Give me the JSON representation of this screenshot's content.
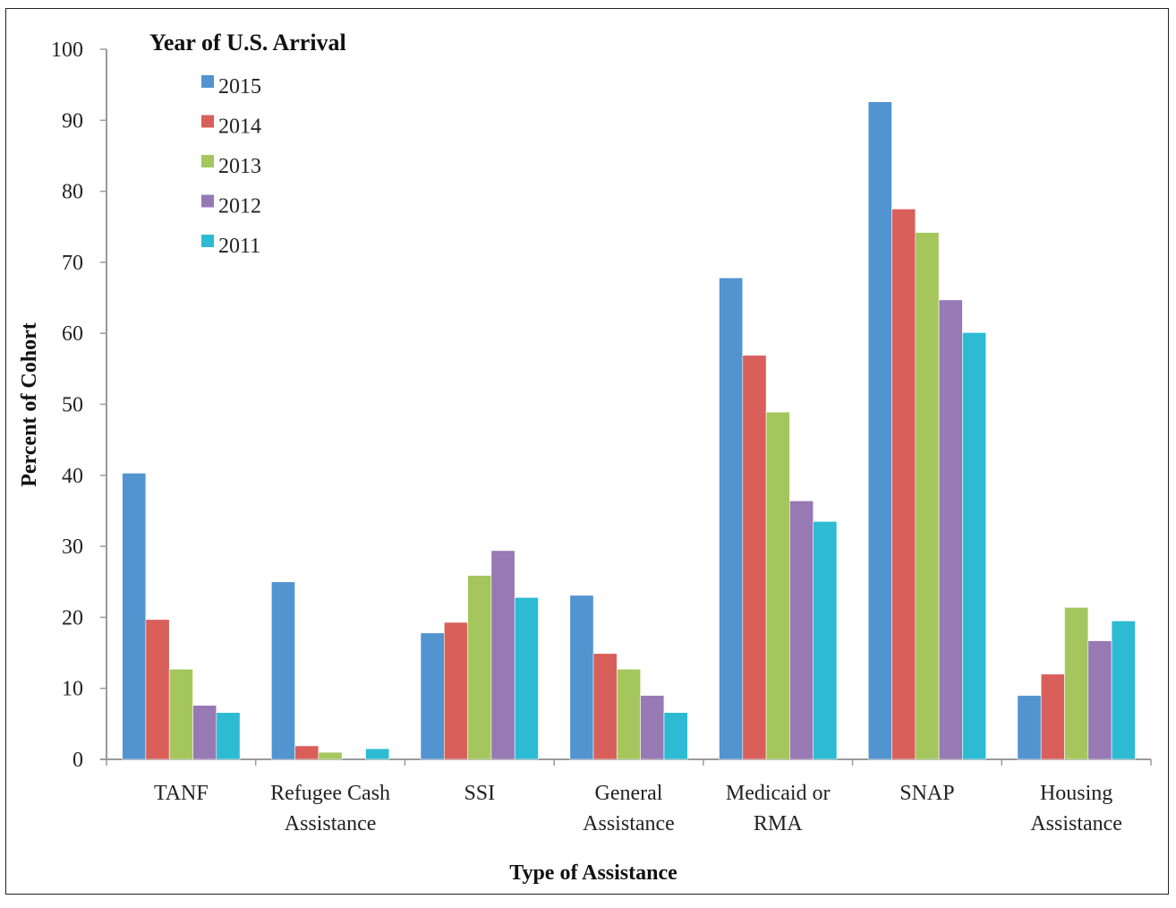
{
  "chart_data": {
    "type": "bar",
    "title": "",
    "xlabel": "Type of Assistance",
    "ylabel": "Percent of Cohort",
    "ylim": [
      0,
      100
    ],
    "yticks": [
      0,
      10,
      20,
      30,
      40,
      50,
      60,
      70,
      80,
      90,
      100
    ],
    "grid": false,
    "legend": {
      "title": "Year of U.S. Arrival",
      "placement": "top-left"
    },
    "categories": [
      [
        "TANF"
      ],
      [
        "Refugee Cash",
        "Assistance"
      ],
      [
        "SSI"
      ],
      [
        "General",
        "Assistance"
      ],
      [
        "Medicaid or",
        "RMA"
      ],
      [
        "SNAP"
      ],
      [
        "Housing",
        "Assistance"
      ]
    ],
    "series": [
      {
        "name": "2015",
        "color": "#5294D0",
        "values": [
          40.3,
          25.0,
          17.8,
          23.1,
          67.8,
          92.6,
          9.0
        ]
      },
      {
        "name": "2014",
        "color": "#D95F5B",
        "values": [
          19.7,
          1.9,
          19.3,
          14.9,
          56.9,
          77.5,
          12.0
        ]
      },
      {
        "name": "2013",
        "color": "#A4C65D",
        "values": [
          12.7,
          1.0,
          25.9,
          12.7,
          48.9,
          74.2,
          21.4
        ]
      },
      {
        "name": "2012",
        "color": "#9779B4",
        "values": [
          7.6,
          0.0,
          29.4,
          9.0,
          36.4,
          64.7,
          16.7
        ]
      },
      {
        "name": "2011",
        "color": "#2DBBD4",
        "values": [
          6.6,
          1.5,
          22.8,
          6.6,
          33.5,
          60.1,
          19.5
        ]
      }
    ]
  }
}
